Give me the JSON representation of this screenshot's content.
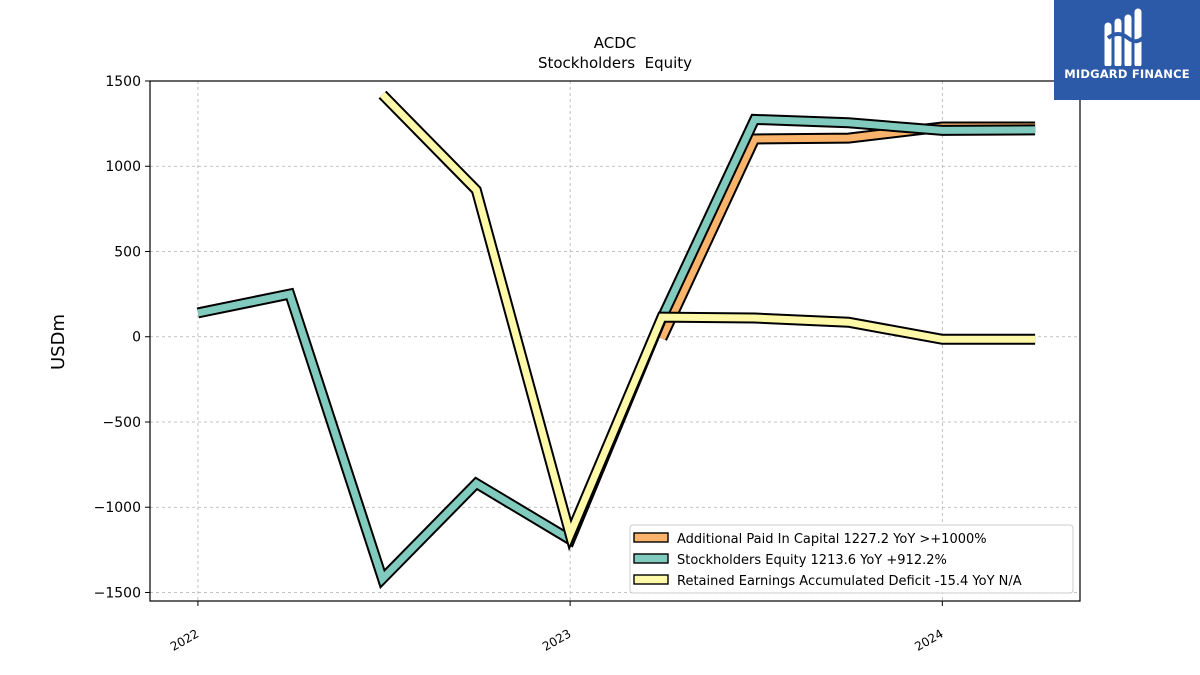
{
  "chart_data": {
    "type": "line",
    "title": "ACDC",
    "subtitle": "Stockholders  Equity",
    "ylabel": "USDm",
    "xlabel": "",
    "ylim": [
      -1550,
      1500
    ],
    "yticks": [
      -1500,
      -1000,
      -500,
      0,
      500,
      1000,
      1500
    ],
    "ytick_labels": [
      "−1500",
      "−1000",
      "−500",
      "0",
      "500",
      "1000",
      "1500"
    ],
    "xlim": [
      "2021-11-15",
      "2024-05-15"
    ],
    "xticks": [
      "2022-01-01",
      "2023-01-01",
      "2024-01-01"
    ],
    "xtick_labels": [
      "2022",
      "2023",
      "2024"
    ],
    "grid": true,
    "legend_position": "lower-right",
    "series": [
      {
        "name": "Additional Paid In Capital",
        "legend": "Additional Paid In Capital  1227.2 YoY >+1000%",
        "color": "#f9b36b",
        "x": [
          "2023-04-01",
          "2023-07-01",
          "2023-10-01",
          "2024-01-01",
          "2024-04-01"
        ],
        "y": [
          -10,
          1160,
          1165,
          1230,
          1230
        ]
      },
      {
        "name": "Stockholders Equity",
        "legend": "Stockholders Equity  1213.6 YoY +912.2%",
        "color": "#80cbbd",
        "x": [
          "2022-01-01",
          "2022-04-01",
          "2022-07-01",
          "2022-10-01",
          "2023-01-01",
          "2023-04-01",
          "2023-07-01",
          "2023-10-01",
          "2024-01-01",
          "2024-04-01"
        ],
        "y": [
          140,
          250,
          -1420,
          -860,
          -1190,
          110,
          1275,
          1255,
          1210,
          1213
        ]
      },
      {
        "name": "Retained Earnings Accumulated Deficit",
        "legend": "Retained Earnings Accumulated Deficit  -15.4 YoY N/A",
        "color": "#fdf9a8",
        "x": [
          "2022-07-01",
          "2022-10-01",
          "2023-01-01",
          "2023-04-01",
          "2023-07-01",
          "2023-10-01",
          "2024-01-01",
          "2024-04-01"
        ],
        "y": [
          1420,
          860,
          -1160,
          115,
          110,
          85,
          -15,
          -15
        ]
      }
    ]
  },
  "brand": {
    "name": "MIDGARD FINANCE",
    "bg_color": "#2d5aa8"
  }
}
